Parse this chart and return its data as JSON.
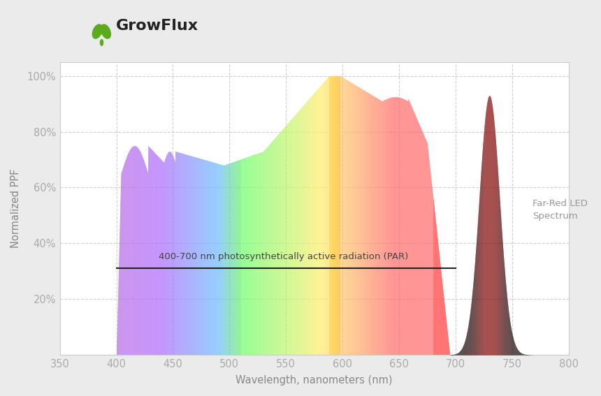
{
  "xlabel": "Wavelength, nanometers (nm)",
  "ylabel": "Normalized PPF",
  "xlim": [
    350,
    800
  ],
  "ylim": [
    0,
    105
  ],
  "yticks": [
    20,
    40,
    60,
    80,
    100
  ],
  "ytick_labels": [
    "20%",
    "40%",
    "60%",
    "80%",
    "100%"
  ],
  "xticks": [
    350,
    400,
    450,
    500,
    550,
    600,
    650,
    700,
    750,
    800
  ],
  "par_line_y": 31,
  "par_label": "400-700 nm photosynthetically active radiation (PAR)",
  "far_red_label": "Far-Red LED\nSpectrum",
  "background_color": "#ebebeb",
  "plot_bg_color": "#ffffff",
  "grid_color": "#cccccc",
  "logo_color": "#5aab1e",
  "logo_text": "GrowFlux"
}
